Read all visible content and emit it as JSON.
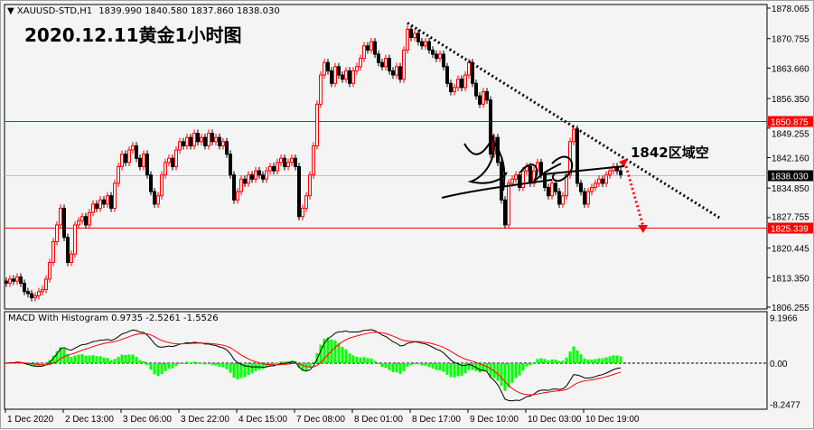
{
  "header": {
    "menu_icon": "triangle-down-icon",
    "symbol": "XAUUSD-STD,H1",
    "ohlc": "1839.990 1840.580 1837.860 1838.030"
  },
  "title": "2020.12.11黄金1小时图",
  "annotation": "1842区域空",
  "macd_label": "MACD With Histogram 0.9735 -2.5261 -1.5526",
  "colors": {
    "bull": "#ff0000",
    "bear": "#000000",
    "level_line": "#ff0000",
    "bid_line": "#c0c0c0",
    "histogram": "#00ff00",
    "macd": "#000000",
    "signal": "#ff0000",
    "background": "#f4f4f4"
  },
  "chart_data": [
    {
      "type": "candlestick",
      "symbol": "XAUUSD-STD",
      "timeframe": "H1",
      "ylim": [
        1806.255,
        1878.065
      ],
      "y_ticks": [
        "1878.065",
        "1870.755",
        "1863.660",
        "1856.350",
        "1849.255",
        "1842.160",
        "1834.850",
        "1827.755",
        "1820.445",
        "1813.350",
        "1806.255"
      ],
      "x_ticks": [
        "1 Dec 2020",
        "2 Dec 13:00",
        "3 Dec 06:00",
        "3 Dec 22:00",
        "4 Dec 15:00",
        "7 Dec 08:00",
        "8 Dec 01:00",
        "8 Dec 17:00",
        "9 Dec 10:00",
        "10 Dec 03:00",
        "10 Dec 19:00"
      ],
      "horizontal_lines": [
        {
          "label": "1850.875",
          "value": 1850.875,
          "color": "#ff0000"
        },
        {
          "label": "1825.339",
          "value": 1825.339,
          "color": "#ff0000"
        },
        {
          "label": "1838.030",
          "value": 1838.03,
          "color": "#c0c0c0"
        }
      ],
      "closes": [
        1812,
        1813,
        1812.5,
        1813.5,
        1812,
        1810,
        1809.5,
        1808.5,
        1809,
        1810,
        1810.5,
        1813,
        1817,
        1822,
        1826,
        1830,
        1823,
        1817,
        1819,
        1826,
        1827,
        1828,
        1826,
        1829,
        1831,
        1830,
        1832,
        1831,
        1833,
        1830,
        1836,
        1840,
        1843,
        1841,
        1844,
        1845,
        1842,
        1840,
        1843,
        1838,
        1834,
        1831,
        1833,
        1838,
        1841,
        1842,
        1840,
        1844,
        1846,
        1845,
        1847,
        1845,
        1848,
        1846,
        1847,
        1845,
        1848,
        1846,
        1847,
        1845,
        1846,
        1843,
        1838,
        1832,
        1834,
        1837,
        1836,
        1838,
        1837,
        1839,
        1838,
        1837,
        1839,
        1840,
        1839,
        1841,
        1842,
        1840,
        1841,
        1842,
        1840,
        1828,
        1830,
        1833,
        1838,
        1845,
        1855,
        1862,
        1865,
        1863,
        1860,
        1864,
        1862,
        1861,
        1863,
        1860,
        1863,
        1864,
        1866,
        1869,
        1868,
        1870,
        1867,
        1865,
        1864,
        1866,
        1863,
        1862,
        1864,
        1861,
        1868,
        1873,
        1871,
        1872,
        1870,
        1869,
        1870,
        1868,
        1867,
        1866,
        1867,
        1864,
        1860,
        1858,
        1859,
        1861,
        1859,
        1862,
        1865,
        1860,
        1857,
        1855,
        1858,
        1856,
        1843,
        1847,
        1841,
        1832,
        1826,
        1836,
        1837,
        1838,
        1835,
        1839,
        1840,
        1836,
        1839,
        1841,
        1838,
        1835,
        1833,
        1836,
        1834,
        1831,
        1833,
        1838,
        1846,
        1849,
        1836,
        1834,
        1831,
        1834,
        1835,
        1836,
        1837,
        1836,
        1838,
        1839,
        1840,
        1839,
        1838.03
      ],
      "trendline": {
        "style": "dotted",
        "color": "#000000",
        "from_price": 1874.5,
        "to_price": 1827.5
      }
    },
    {
      "type": "line",
      "title": "MACD With Histogram",
      "values_shown": [
        0.9735,
        -2.5261,
        -1.5526
      ],
      "ylim": [
        -8.2477,
        9.1966
      ],
      "y_ticks": [
        "9.1966",
        "0.00",
        "-8.2477"
      ],
      "series_colors": {
        "macd": "#000000",
        "signal": "#ff0000",
        "histogram": "#00ff00"
      }
    }
  ]
}
